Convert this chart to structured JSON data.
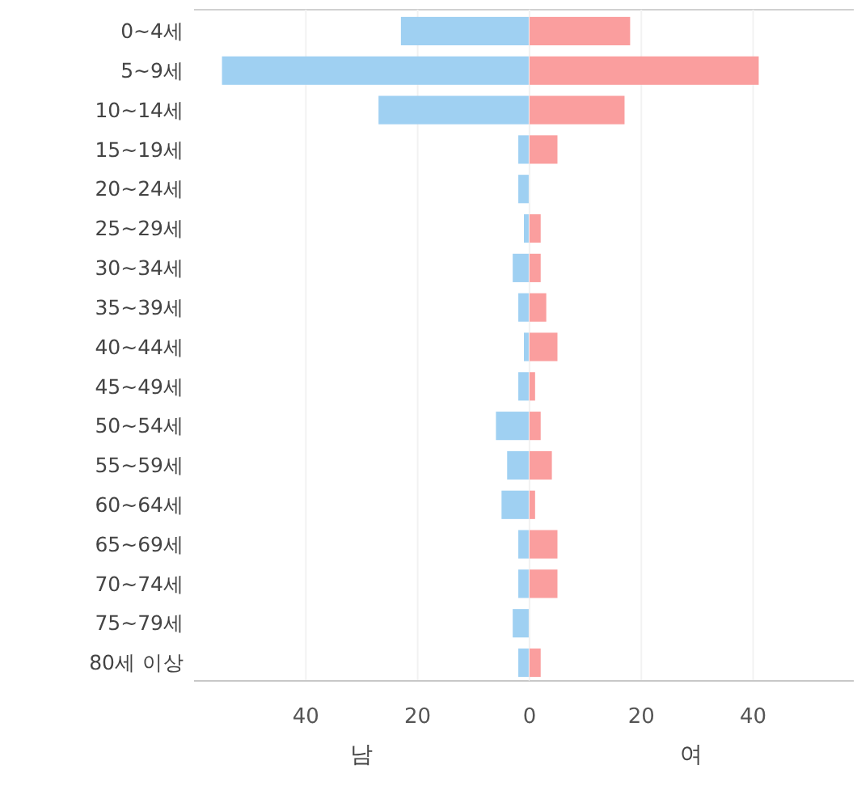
{
  "chart_data": [
    {
      "type": "bar",
      "orientation": "horizontal",
      "xlabel": "남",
      "categories": [
        "0~4세",
        "5~9세",
        "10~14세",
        "15~19세",
        "20~24세",
        "25~29세",
        "30~34세",
        "35~39세",
        "40~44세",
        "45~49세",
        "50~54세",
        "55~59세",
        "60~64세",
        "65~69세",
        "70~74세",
        "75~79세",
        "80세 이상"
      ],
      "series": [
        {
          "color": "#9fd0f2",
          "values": [
            23,
            55,
            27,
            2,
            2,
            1,
            3,
            2,
            1,
            2,
            6,
            4,
            5,
            2,
            2,
            3,
            2
          ]
        }
      ],
      "xlim": [
        60,
        0
      ],
      "xticks": [
        40,
        20
      ],
      "grid": "x"
    },
    {
      "type": "bar",
      "orientation": "horizontal",
      "xlabel": "여",
      "tick_labels": "x",
      "categories": [
        null,
        null,
        null,
        null,
        null,
        null,
        null,
        null,
        null,
        null,
        null,
        null,
        null,
        null,
        null,
        null,
        null
      ],
      "series": [
        {
          "color": "#fa9e9e",
          "values": [
            18,
            41,
            17,
            5,
            0,
            2,
            2,
            3,
            5,
            1,
            2,
            4,
            1,
            5,
            5,
            0,
            2
          ]
        }
      ],
      "xlim": [
        0,
        58
      ],
      "xticks": [
        0,
        20,
        40
      ],
      "grid": "x"
    }
  ]
}
